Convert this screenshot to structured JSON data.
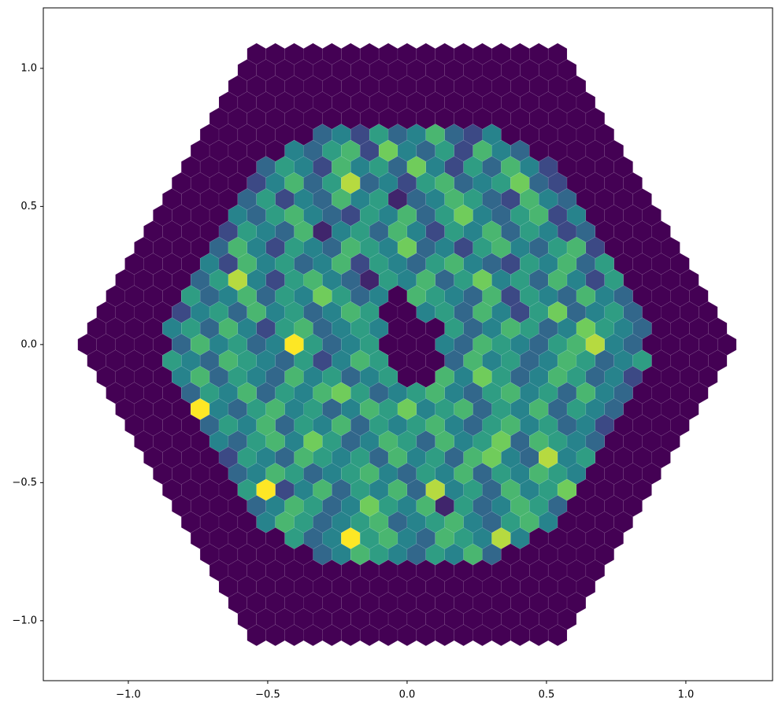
{
  "chart_data": {
    "type": "hexgrid",
    "xlim": [
      -1.305,
      1.311
    ],
    "ylim": [
      -1.217,
      1.219
    ],
    "xticks": [
      {
        "value": -1.0,
        "label": "−1.0"
      },
      {
        "value": -0.5,
        "label": "−0.5"
      },
      {
        "value": 0.0,
        "label": "0.0"
      },
      0.5,
      {
        "value": 1.0,
        "label": "1.0"
      }
    ],
    "yticks": [
      {
        "value": -1.0,
        "label": "−1.0"
      },
      {
        "value": -0.5,
        "label": "−0.5"
      },
      {
        "value": 0.0,
        "label": "0.0"
      },
      0.5,
      {
        "value": 1.0,
        "label": "1.0"
      }
    ],
    "colormap": "viridis",
    "values": [
      [
        0,
        0,
        0,
        0,
        0,
        0,
        0,
        0,
        0,
        0,
        0,
        0,
        0,
        0,
        0,
        0,
        0
      ],
      [
        0,
        0,
        0,
        0,
        0,
        0,
        0,
        0,
        0,
        0,
        0,
        0,
        0,
        0,
        0,
        0,
        0,
        0
      ],
      [
        0,
        0,
        0,
        0,
        0,
        0,
        0,
        0,
        0,
        0,
        0,
        0,
        0,
        0,
        0,
        0,
        0,
        0,
        0
      ],
      [
        0,
        0,
        0,
        0,
        0,
        0,
        0,
        0,
        0,
        0,
        0,
        0,
        0,
        0,
        0,
        0,
        0,
        0,
        0,
        0
      ],
      [
        0,
        0,
        0,
        0,
        0,
        0,
        0,
        0,
        0,
        0,
        0,
        0,
        0,
        0,
        0,
        0,
        0,
        0,
        0,
        0,
        0
      ],
      [
        0,
        0,
        0,
        0,
        0,
        0,
        3,
        4,
        2,
        5,
        3,
        4,
        6,
        3,
        2,
        4,
        0,
        0,
        0,
        0,
        0,
        0
      ],
      [
        0,
        0,
        0,
        0,
        0,
        4,
        3,
        5,
        6,
        2,
        7,
        4,
        3,
        5,
        2,
        6,
        4,
        3,
        0,
        0,
        0,
        0,
        0
      ],
      [
        0,
        0,
        0,
        0,
        3,
        5,
        4,
        2,
        6,
        4,
        5,
        3,
        7,
        4,
        2,
        5,
        3,
        6,
        4,
        2,
        0,
        0,
        0,
        0
      ],
      [
        0,
        0,
        0,
        0,
        2,
        4,
        6,
        3,
        5,
        8,
        3,
        4,
        2,
        5,
        6,
        3,
        4,
        5,
        7,
        3,
        2,
        0,
        0,
        0,
        0
      ],
      [
        0,
        0,
        0,
        0,
        3,
        5,
        2,
        4,
        3,
        6,
        4,
        5,
        1,
        3,
        4,
        6,
        5,
        3,
        2,
        6,
        4,
        3,
        0,
        0,
        0,
        0
      ],
      [
        0,
        0,
        0,
        0,
        4,
        3,
        5,
        6,
        4,
        3,
        2,
        5,
        4,
        6,
        3,
        5,
        7,
        4,
        3,
        5,
        6,
        2,
        4,
        0,
        0,
        0,
        0
      ],
      [
        0,
        0,
        0,
        0,
        2,
        5,
        4,
        3,
        6,
        1,
        4,
        5,
        3,
        6,
        4,
        2,
        5,
        4,
        6,
        3,
        5,
        4,
        2,
        3,
        0,
        0,
        0,
        0
      ],
      [
        0,
        0,
        0,
        0,
        3,
        6,
        4,
        2,
        5,
        4,
        3,
        6,
        5,
        4,
        7,
        3,
        4,
        2,
        5,
        6,
        4,
        3,
        5,
        6,
        2,
        0,
        0,
        0,
        0
      ],
      [
        0,
        0,
        0,
        0,
        4,
        2,
        6,
        4,
        5,
        3,
        4,
        6,
        2,
        5,
        4,
        3,
        5,
        6,
        4,
        3,
        2,
        5,
        4,
        6,
        3,
        5,
        0,
        0,
        0,
        0
      ],
      [
        0,
        0,
        0,
        0,
        3,
        5,
        8,
        4,
        2,
        5,
        6,
        4,
        3,
        1,
        5,
        4,
        6,
        3,
        5,
        7,
        4,
        5,
        3,
        6,
        4,
        2,
        5,
        0,
        0,
        0,
        0
      ],
      [
        0,
        0,
        0,
        0,
        5,
        3,
        4,
        6,
        3,
        5,
        4,
        7,
        5,
        3,
        4,
        0,
        6,
        5,
        4,
        3,
        6,
        2,
        5,
        4,
        3,
        6,
        4,
        3,
        0,
        0,
        0,
        0
      ],
      [
        0,
        0,
        0,
        0,
        2,
        4,
        5,
        3,
        6,
        4,
        5,
        3,
        4,
        6,
        5,
        0,
        0,
        4,
        5,
        3,
        6,
        4,
        2,
        5,
        7,
        3,
        4,
        5,
        3,
        0,
        0,
        0,
        0
      ],
      [
        0,
        0,
        0,
        0,
        4,
        5,
        3,
        6,
        4,
        2,
        5,
        6,
        3,
        4,
        5,
        4,
        0,
        0,
        0,
        5,
        3,
        4,
        6,
        5,
        3,
        4,
        7,
        5,
        4,
        3,
        0,
        0,
        0,
        0
      ],
      [
        0,
        0,
        0,
        0,
        0,
        3,
        6,
        4,
        5,
        3,
        4,
        9,
        5,
        3,
        4,
        5,
        0,
        0,
        0,
        4,
        3,
        6,
        5,
        4,
        3,
        5,
        6,
        8,
        4,
        3,
        0,
        0,
        0,
        0,
        0
      ],
      [
        0,
        0,
        0,
        0,
        5,
        4,
        3,
        6,
        5,
        4,
        3,
        5,
        2,
        4,
        6,
        5,
        0,
        0,
        0,
        3,
        6,
        4,
        5,
        3,
        4,
        6,
        5,
        3,
        4,
        5,
        0,
        0,
        0,
        0
      ],
      [
        0,
        0,
        0,
        0,
        4,
        6,
        3,
        5,
        4,
        3,
        6,
        4,
        5,
        3,
        4,
        5,
        0,
        0,
        6,
        4,
        7,
        5,
        3,
        4,
        6,
        5,
        3,
        4,
        2,
        0,
        0,
        0,
        0
      ],
      [
        0,
        0,
        0,
        0,
        3,
        5,
        4,
        6,
        3,
        5,
        4,
        6,
        7,
        5,
        3,
        4,
        5,
        6,
        4,
        3,
        5,
        6,
        4,
        5,
        3,
        6,
        4,
        3,
        0,
        0,
        0,
        0
      ],
      [
        0,
        0,
        0,
        0,
        9,
        4,
        3,
        5,
        6,
        4,
        5,
        3,
        4,
        6,
        5,
        7,
        4,
        5,
        6,
        3,
        5,
        4,
        6,
        3,
        5,
        4,
        3,
        0,
        0,
        0,
        0
      ],
      [
        0,
        0,
        0,
        0,
        3,
        5,
        4,
        6,
        3,
        5,
        4,
        6,
        3,
        5,
        4,
        5,
        6,
        4,
        3,
        5,
        6,
        4,
        5,
        3,
        4,
        2,
        0,
        0,
        0,
        0
      ],
      [
        0,
        0,
        0,
        0,
        4,
        3,
        5,
        6,
        4,
        7,
        5,
        3,
        4,
        6,
        5,
        3,
        6,
        4,
        5,
        7,
        3,
        6,
        5,
        4,
        3,
        0,
        0,
        0,
        0
      ],
      [
        0,
        0,
        0,
        0,
        2,
        5,
        4,
        3,
        6,
        5,
        4,
        5,
        3,
        6,
        4,
        5,
        3,
        6,
        7,
        4,
        3,
        8,
        4,
        5,
        0,
        0,
        0,
        0
      ],
      [
        0,
        0,
        0,
        0,
        3,
        4,
        6,
        5,
        3,
        4,
        5,
        6,
        4,
        3,
        5,
        4,
        6,
        3,
        5,
        4,
        6,
        5,
        4,
        0,
        0,
        0,
        0
      ],
      [
        0,
        0,
        0,
        0,
        5,
        9,
        2,
        4,
        6,
        3,
        5,
        4,
        6,
        3,
        8,
        4,
        5,
        3,
        6,
        4,
        5,
        7,
        0,
        0,
        0,
        0
      ],
      [
        0,
        0,
        0,
        0,
        3,
        4,
        6,
        5,
        3,
        4,
        7,
        5,
        4,
        6,
        1,
        5,
        3,
        4,
        6,
        5,
        3,
        0,
        0,
        0,
        0
      ],
      [
        0,
        0,
        0,
        0,
        4,
        6,
        5,
        3,
        4,
        5,
        6,
        3,
        4,
        5,
        6,
        4,
        3,
        5,
        6,
        4,
        0,
        0,
        0,
        0
      ],
      [
        0,
        0,
        0,
        0,
        0,
        5,
        3,
        4,
        9,
        5,
        6,
        4,
        3,
        6,
        5,
        4,
        8,
        4,
        0,
        0,
        0,
        0,
        0
      ],
      [
        0,
        0,
        0,
        0,
        0,
        0,
        3,
        4,
        6,
        5,
        4,
        3,
        5,
        4,
        6,
        3,
        0,
        0,
        0,
        0,
        0,
        0
      ],
      [
        0,
        0,
        0,
        0,
        0,
        0,
        0,
        0,
        0,
        0,
        0,
        0,
        0,
        0,
        0,
        0,
        0,
        0,
        0,
        0,
        0
      ],
      [
        0,
        0,
        0,
        0,
        0,
        0,
        0,
        0,
        0,
        0,
        0,
        0,
        0,
        0,
        0,
        0,
        0,
        0,
        0,
        0
      ],
      [
        0,
        0,
        0,
        0,
        0,
        0,
        0,
        0,
        0,
        0,
        0,
        0,
        0,
        0,
        0,
        0,
        0,
        0,
        0
      ],
      [
        0,
        0,
        0,
        0,
        0,
        0,
        0,
        0,
        0,
        0,
        0,
        0,
        0,
        0,
        0,
        0,
        0,
        0
      ],
      [
        0,
        0,
        0,
        0,
        0,
        0,
        0,
        0,
        0,
        0,
        0,
        0,
        0,
        0,
        0,
        0,
        0
      ]
    ]
  }
}
